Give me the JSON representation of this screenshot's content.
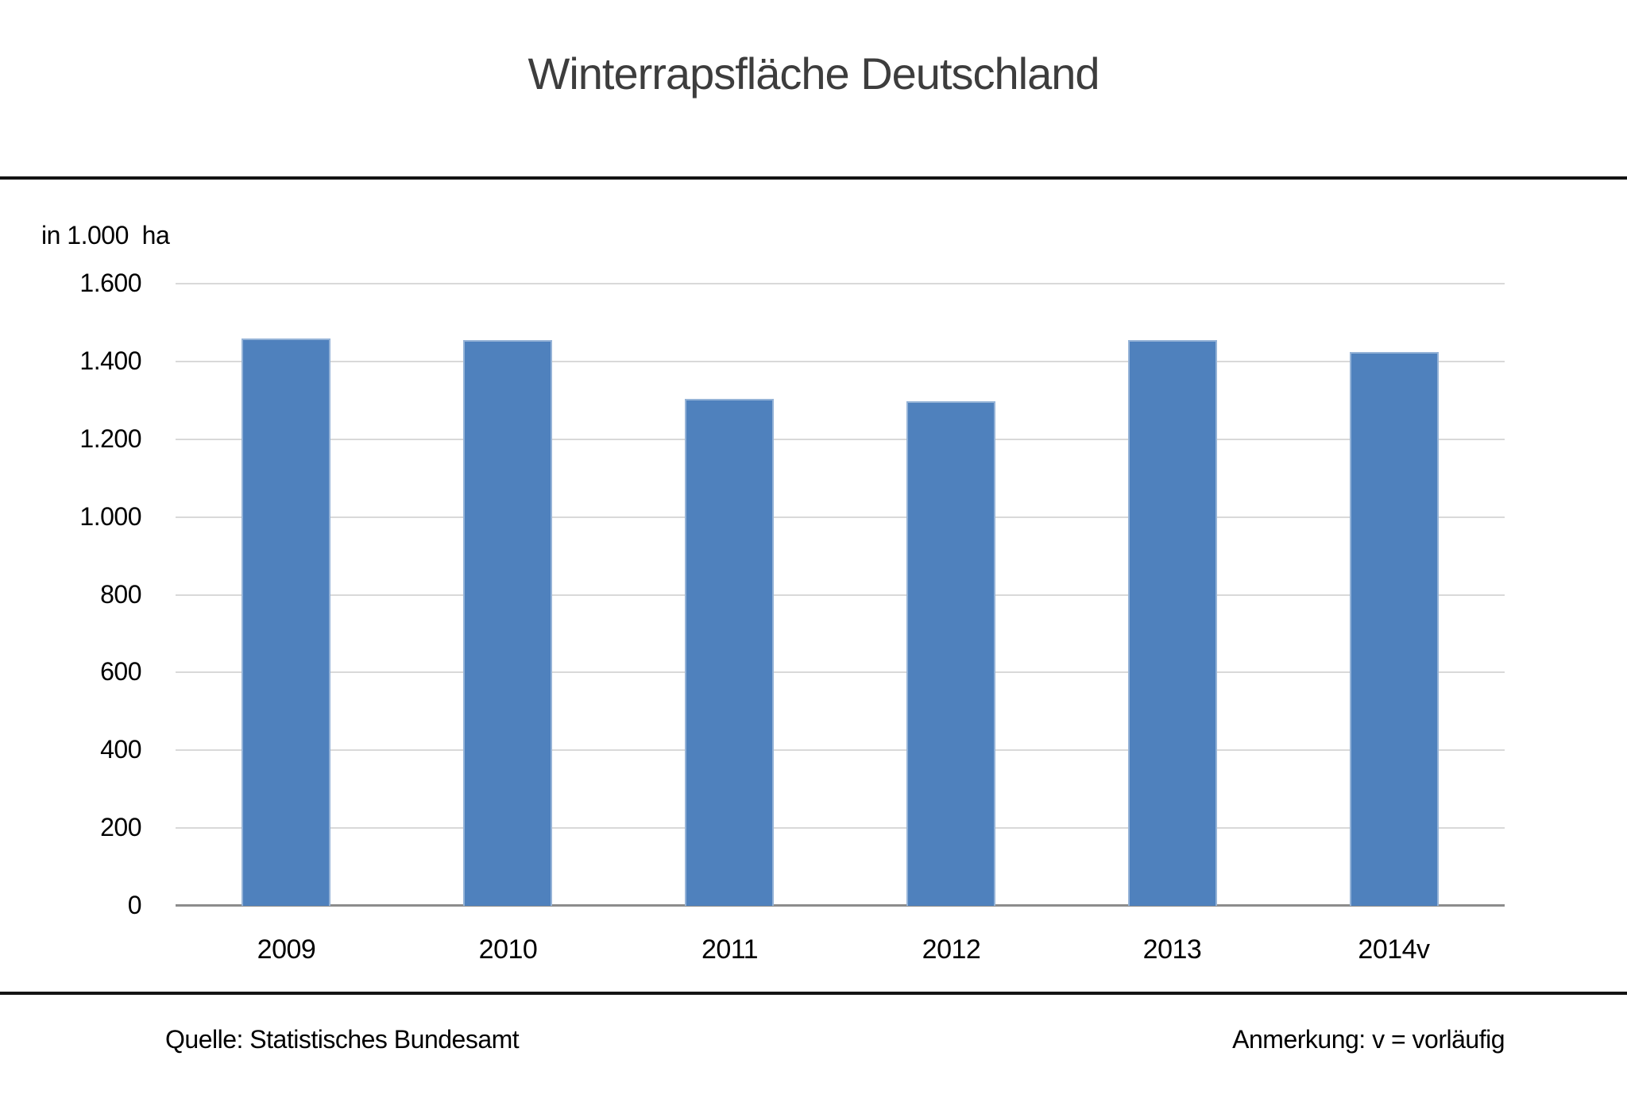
{
  "title": "Winterrapsfläche Deutschland",
  "chart_data": {
    "type": "bar",
    "title": "Winterrapsfläche Deutschland",
    "unit_label": "in 1.000  ha",
    "categories": [
      "2009",
      "2010",
      "2011",
      "2012",
      "2013",
      "2014v"
    ],
    "values": [
      1460,
      1454,
      1304,
      1297,
      1454,
      1424
    ],
    "xlabel": "",
    "ylabel": "in 1.000 ha",
    "ylim": [
      0,
      1600
    ],
    "ytick_step": 200,
    "yticks": [
      "1.600",
      "1.400",
      "1.200",
      "1.000",
      "800",
      "600",
      "400",
      "200",
      "0"
    ],
    "grid": true,
    "legend": "none",
    "bar_color": "#4F81BD",
    "bar_border_color": "#95B3D7",
    "gridline_color": "#D9D9D9",
    "axis_color": "#8C8C8C"
  },
  "footer": {
    "source": "Quelle: Statistisches Bundesamt",
    "note": "Anmerkung: v = vorläufig"
  }
}
